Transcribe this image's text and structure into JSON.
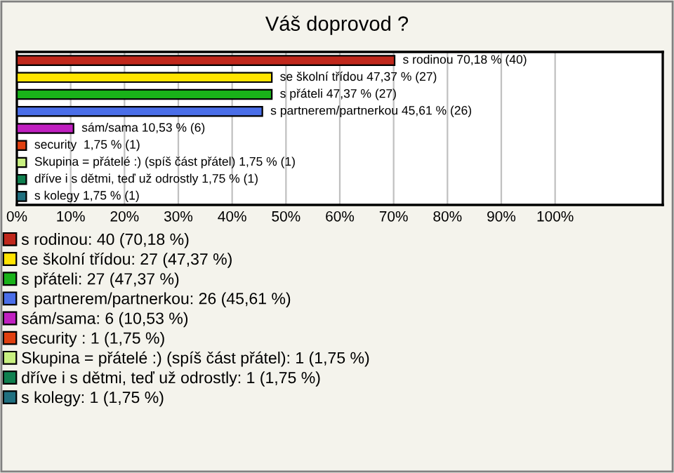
{
  "chart_data": {
    "type": "bar",
    "orientation": "horizontal",
    "title": "Váš doprovod ?",
    "categories": [
      null,
      null,
      null,
      null,
      null,
      null,
      null,
      null,
      null
    ],
    "series": [
      {
        "name": "s rodinou: 40 (70,18 %)",
        "color": "#c0281c",
        "values": [
          70.18,
          null,
          null,
          null,
          null,
          null,
          null,
          null,
          null
        ],
        "value_labels": [
          "s rodinou 70,18 % (40)",
          null,
          null,
          null,
          null,
          null,
          null,
          null,
          null
        ]
      },
      {
        "name": "se školní třídou: 27 (47,37 %)",
        "color": "#ffe400",
        "values": [
          null,
          47.37,
          null,
          null,
          null,
          null,
          null,
          null,
          null
        ],
        "value_labels": [
          null,
          "se školní třídou 47,37 % (27)",
          null,
          null,
          null,
          null,
          null,
          null,
          null
        ]
      },
      {
        "name": "s přáteli: 27 (47,37 %)",
        "color": "#19b219",
        "values": [
          null,
          null,
          47.37,
          null,
          null,
          null,
          null,
          null,
          null
        ],
        "value_labels": [
          null,
          null,
          "s přáteli 47,37 % (27)",
          null,
          null,
          null,
          null,
          null,
          null
        ]
      },
      {
        "name": "s partnerem/partnerkou: 26 (45,61 %)",
        "color": "#4a6ee8",
        "values": [
          null,
          null,
          null,
          45.61,
          null,
          null,
          null,
          null,
          null
        ],
        "value_labels": [
          null,
          null,
          null,
          "s partnerem/partnerkou 45,61 % (26)",
          null,
          null,
          null,
          null,
          null
        ]
      },
      {
        "name": "sám/sama: 6 (10,53 %)",
        "color": "#c020c0",
        "values": [
          null,
          null,
          null,
          null,
          10.53,
          null,
          null,
          null,
          null
        ],
        "value_labels": [
          null,
          null,
          null,
          null,
          "sám/sama 10,53 % (6)",
          null,
          null,
          null,
          null
        ]
      },
      {
        "name": "security : 1 (1,75 %)",
        "color": "#e04010",
        "values": [
          null,
          null,
          null,
          null,
          null,
          1.75,
          null,
          null,
          null
        ],
        "value_labels": [
          null,
          null,
          null,
          null,
          null,
          "security  1,75 % (1)",
          null,
          null,
          null
        ]
      },
      {
        "name": "Skupina = přátelé :) (spíš část přátel): 1 (1,75 %)",
        "color": "#c8f080",
        "values": [
          null,
          null,
          null,
          null,
          null,
          null,
          1.75,
          null,
          null
        ],
        "value_labels": [
          null,
          null,
          null,
          null,
          null,
          null,
          "Skupina = přátelé :) (spíš část přátel) 1,75 % (1)",
          null,
          null
        ]
      },
      {
        "name": "dříve i s dětmi, teď už odrostly: 1 (1,75 %)",
        "color": "#108050",
        "values": [
          null,
          null,
          null,
          null,
          null,
          null,
          null,
          1.75,
          null
        ],
        "value_labels": [
          null,
          null,
          null,
          null,
          null,
          null,
          null,
          "dříve i s dětmi, teď už odrostly 1,75 % (1)",
          null
        ]
      },
      {
        "name": "s kolegy: 1 (1,75 %)",
        "color": "#207080",
        "values": [
          null,
          null,
          null,
          null,
          null,
          null,
          null,
          null,
          1.75
        ],
        "value_labels": [
          null,
          null,
          null,
          null,
          null,
          null,
          null,
          null,
          "s kolegy 1,75 % (1)"
        ]
      }
    ],
    "xlim": [
      0,
      120
    ],
    "xticks": [
      {
        "value": 0,
        "label": "0%"
      },
      {
        "value": 10,
        "label": "10%"
      },
      {
        "value": 20,
        "label": "20%"
      },
      {
        "value": 30,
        "label": "30%"
      },
      {
        "value": 40,
        "label": "40%"
      },
      {
        "value": 50,
        "label": "50%"
      },
      {
        "value": 60,
        "label": "60%"
      },
      {
        "value": 70,
        "label": "70%"
      },
      {
        "value": 80,
        "label": "80%"
      },
      {
        "value": 90,
        "label": "90%"
      },
      {
        "value": 100,
        "label": "100%"
      }
    ],
    "grid": "x",
    "legend": "bottom",
    "tick_labels": "x"
  }
}
